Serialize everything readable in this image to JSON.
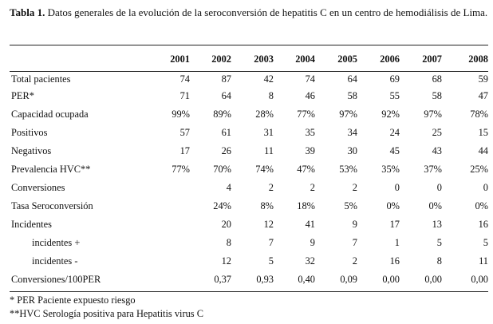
{
  "caption": {
    "label": "Tabla 1.",
    "text": "Datos generales de la evolución de la seroconversión de hepatitis C en un centro de hemodiálisis de Lima."
  },
  "table": {
    "headers": [
      "",
      "2001",
      "2002",
      "2003",
      "2004",
      "2005",
      "2006",
      "2007",
      "2008"
    ],
    "rows": [
      {
        "label": "Total pacientes",
        "values": [
          "74",
          "87",
          "42",
          "74",
          "64",
          "69",
          "68",
          "59"
        ]
      },
      {
        "label": "PER*",
        "values": [
          "71",
          "64",
          "8",
          "46",
          "58",
          "55",
          "58",
          "47"
        ]
      },
      {
        "label": "Capacidad ocupada",
        "values": [
          "99%",
          "89%",
          "28%",
          "77%",
          "97%",
          "92%",
          "97%",
          "78%"
        ]
      },
      {
        "label": "Positivos",
        "values": [
          "57",
          "61",
          "31",
          "35",
          "34",
          "24",
          "25",
          "15"
        ]
      },
      {
        "label": "Negativos",
        "values": [
          "17",
          "26",
          "11",
          "39",
          "30",
          "45",
          "43",
          "44"
        ]
      },
      {
        "label": "Prevalencia HVC**",
        "values": [
          "77%",
          "70%",
          "74%",
          "47%",
          "53%",
          "35%",
          "37%",
          "25%"
        ]
      },
      {
        "label": "Conversiones",
        "values": [
          "",
          "4",
          "2",
          "2",
          "2",
          "0",
          "0",
          "0"
        ]
      },
      {
        "label": "Tasa Seroconversión",
        "values": [
          "",
          "24%",
          "8%",
          "18%",
          "5%",
          "0%",
          "0%",
          "0%"
        ]
      },
      {
        "label": "Incidentes",
        "values": [
          "",
          "20",
          "12",
          "41",
          "9",
          "17",
          "13",
          "16"
        ]
      },
      {
        "label": "incidentes +",
        "values": [
          "",
          "8",
          "7",
          "9",
          "7",
          "1",
          "5",
          "5"
        ]
      },
      {
        "label": "incidentes -",
        "values": [
          "",
          "12",
          "5",
          "32",
          "2",
          "16",
          "8",
          "11"
        ]
      },
      {
        "label": "Conversiones/100PER",
        "values": [
          "",
          "0,37",
          "0,93",
          "0,40",
          "0,09",
          "0,00",
          "0,00",
          "0,00"
        ]
      }
    ]
  },
  "footnotes": [
    "* PER Paciente expuesto riesgo",
    "**HVC Serología positiva para Hepatitis virus C"
  ]
}
